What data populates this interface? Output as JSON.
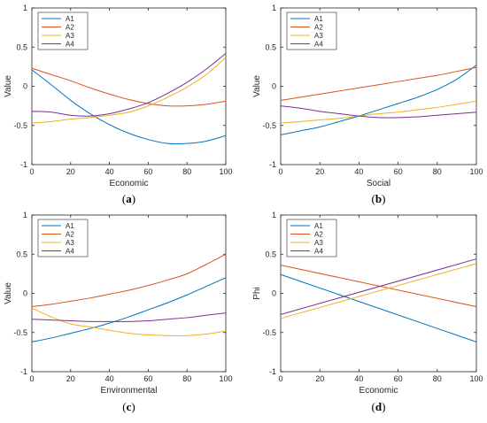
{
  "colors": {
    "A1": "#0072BD",
    "A2": "#D95319",
    "A3": "#EDB120",
    "A4": "#7E2F8E"
  },
  "legend_placement": "top-left",
  "grid": false,
  "chart_data": [
    {
      "type": "line",
      "caption": {
        "open": "(",
        "letter": "a",
        "close": ")"
      },
      "xlabel": "Economic",
      "ylabel": "Value",
      "xlim": [
        0,
        100
      ],
      "ylim": [
        -1,
        1
      ],
      "xticks": [
        "0",
        "20",
        "40",
        "60",
        "80",
        "100"
      ],
      "yticks": [
        "-1",
        "-0.5",
        "0",
        "0.5",
        "1"
      ],
      "x": [
        0,
        10,
        20,
        30,
        40,
        50,
        60,
        70,
        80,
        90,
        100
      ],
      "series": [
        {
          "name": "A1",
          "values": [
            0.21,
            0.02,
            -0.18,
            -0.35,
            -0.49,
            -0.6,
            -0.68,
            -0.73,
            -0.73,
            -0.7,
            -0.63
          ]
        },
        {
          "name": "A2",
          "values": [
            0.23,
            0.15,
            0.07,
            -0.02,
            -0.1,
            -0.17,
            -0.22,
            -0.25,
            -0.25,
            -0.23,
            -0.19
          ]
        },
        {
          "name": "A3",
          "values": [
            -0.47,
            -0.45,
            -0.42,
            -0.4,
            -0.37,
            -0.33,
            -0.25,
            -0.14,
            -0.01,
            0.15,
            0.37
          ]
        },
        {
          "name": "A4",
          "values": [
            -0.32,
            -0.33,
            -0.37,
            -0.38,
            -0.35,
            -0.29,
            -0.21,
            -0.09,
            0.05,
            0.22,
            0.42
          ]
        }
      ]
    },
    {
      "type": "line",
      "caption": {
        "open": "(",
        "letter": "b",
        "close": ")"
      },
      "xlabel": "Social",
      "ylabel": "Value",
      "xlim": [
        0,
        100
      ],
      "ylim": [
        -1,
        1
      ],
      "xticks": [
        "0",
        "20",
        "40",
        "60",
        "80",
        "100"
      ],
      "yticks": [
        "-1",
        "-0.5",
        "0",
        "0.5",
        "1"
      ],
      "x": [
        0,
        10,
        20,
        30,
        40,
        50,
        60,
        70,
        80,
        90,
        100
      ],
      "series": [
        {
          "name": "A1",
          "values": [
            -0.62,
            -0.57,
            -0.52,
            -0.45,
            -0.38,
            -0.3,
            -0.22,
            -0.14,
            -0.04,
            0.09,
            0.27
          ]
        },
        {
          "name": "A2",
          "values": [
            -0.18,
            -0.14,
            -0.1,
            -0.06,
            -0.02,
            0.02,
            0.06,
            0.1,
            0.14,
            0.19,
            0.24
          ]
        },
        {
          "name": "A3",
          "values": [
            -0.47,
            -0.45,
            -0.43,
            -0.41,
            -0.38,
            -0.35,
            -0.33,
            -0.3,
            -0.27,
            -0.23,
            -0.19
          ]
        },
        {
          "name": "A4",
          "values": [
            -0.25,
            -0.28,
            -0.32,
            -0.35,
            -0.38,
            -0.4,
            -0.4,
            -0.39,
            -0.37,
            -0.35,
            -0.33
          ]
        }
      ]
    },
    {
      "type": "line",
      "caption": {
        "open": "(",
        "letter": "c",
        "close": ")"
      },
      "xlabel": "Environmental",
      "ylabel": "Value",
      "xlim": [
        0,
        100
      ],
      "ylim": [
        -1,
        1
      ],
      "xticks": [
        "0",
        "20",
        "40",
        "60",
        "80",
        "100"
      ],
      "yticks": [
        "-1",
        "-0.5",
        "0",
        "0.5",
        "1"
      ],
      "x": [
        0,
        10,
        20,
        30,
        40,
        50,
        60,
        70,
        80,
        90,
        100
      ],
      "series": [
        {
          "name": "A1",
          "values": [
            -0.62,
            -0.57,
            -0.51,
            -0.45,
            -0.38,
            -0.3,
            -0.21,
            -0.12,
            -0.02,
            0.09,
            0.2
          ]
        },
        {
          "name": "A2",
          "values": [
            -0.17,
            -0.14,
            -0.1,
            -0.06,
            -0.01,
            0.04,
            0.1,
            0.17,
            0.25,
            0.37,
            0.5
          ]
        },
        {
          "name": "A3",
          "values": [
            -0.19,
            -0.3,
            -0.39,
            -0.43,
            -0.47,
            -0.51,
            -0.53,
            -0.54,
            -0.54,
            -0.52,
            -0.48
          ]
        },
        {
          "name": "A4",
          "values": [
            -0.33,
            -0.34,
            -0.35,
            -0.36,
            -0.36,
            -0.36,
            -0.35,
            -0.33,
            -0.31,
            -0.28,
            -0.25
          ]
        }
      ]
    },
    {
      "type": "line",
      "caption": {
        "open": "(",
        "letter": "d",
        "close": ")"
      },
      "xlabel": "Economic",
      "ylabel": "Phi",
      "xlim": [
        0,
        100
      ],
      "ylim": [
        -1,
        1
      ],
      "xticks": [
        "0",
        "20",
        "40",
        "60",
        "80",
        "100"
      ],
      "yticks": [
        "-1",
        "-0.5",
        "0",
        "0.5",
        "1"
      ],
      "x": [
        0,
        100
      ],
      "series": [
        {
          "name": "A1",
          "values": [
            0.24,
            -0.62
          ]
        },
        {
          "name": "A2",
          "values": [
            0.36,
            -0.17
          ]
        },
        {
          "name": "A3",
          "values": [
            -0.32,
            0.38
          ]
        },
        {
          "name": "A4",
          "values": [
            -0.27,
            0.44
          ]
        }
      ]
    }
  ]
}
